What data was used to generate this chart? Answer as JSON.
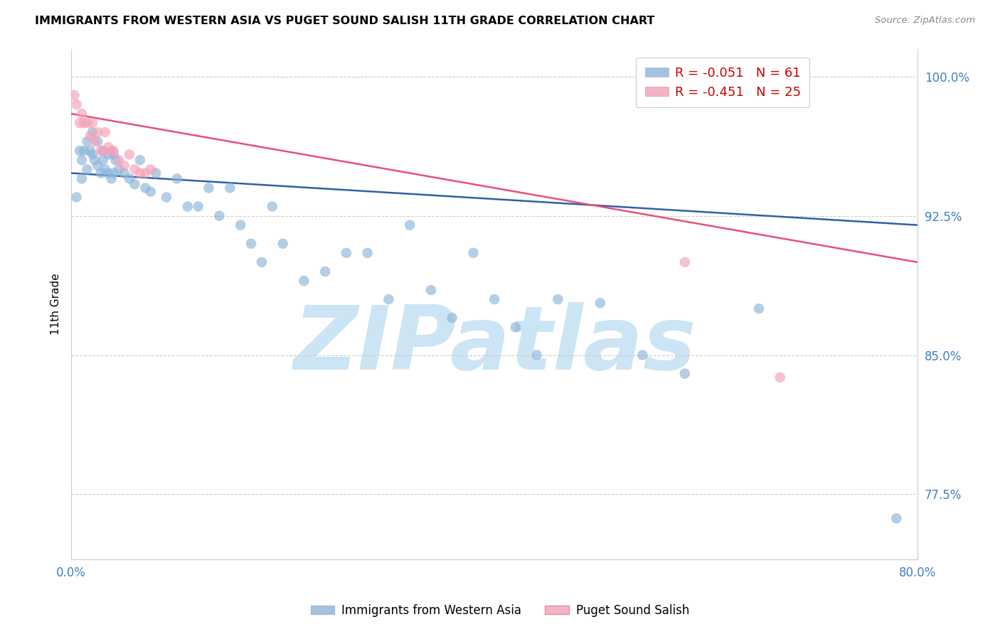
{
  "title": "IMMIGRANTS FROM WESTERN ASIA VS PUGET SOUND SALISH 11TH GRADE CORRELATION CHART",
  "source": "Source: ZipAtlas.com",
  "ylabel": "11th Grade",
  "xlim": [
    0.0,
    0.8
  ],
  "ylim": [
    0.74,
    1.015
  ],
  "yticks": [
    0.775,
    0.85,
    0.925,
    1.0
  ],
  "yticklabels": [
    "77.5%",
    "85.0%",
    "92.5%",
    "100.0%"
  ],
  "blue_color": "#8ab4d8",
  "pink_color": "#f4a0b8",
  "blue_line_color": "#3060a8",
  "pink_line_color": "#e8507a",
  "watermark": "ZIPatlas",
  "watermark_color": "#cce5f5",
  "blue_dots_x": [
    0.005,
    0.008,
    0.01,
    0.01,
    0.012,
    0.015,
    0.015,
    0.018,
    0.02,
    0.02,
    0.022,
    0.025,
    0.025,
    0.028,
    0.03,
    0.03,
    0.032,
    0.035,
    0.035,
    0.038,
    0.04,
    0.04,
    0.042,
    0.045,
    0.05,
    0.055,
    0.06,
    0.065,
    0.07,
    0.075,
    0.08,
    0.09,
    0.1,
    0.11,
    0.12,
    0.13,
    0.14,
    0.15,
    0.16,
    0.17,
    0.18,
    0.19,
    0.2,
    0.22,
    0.24,
    0.26,
    0.28,
    0.3,
    0.32,
    0.34,
    0.36,
    0.38,
    0.4,
    0.42,
    0.44,
    0.46,
    0.5,
    0.54,
    0.58,
    0.65,
    0.78
  ],
  "blue_dots_y": [
    0.935,
    0.96,
    0.955,
    0.945,
    0.96,
    0.965,
    0.95,
    0.96,
    0.97,
    0.958,
    0.955,
    0.965,
    0.952,
    0.948,
    0.96,
    0.955,
    0.95,
    0.958,
    0.948,
    0.945,
    0.958,
    0.948,
    0.955,
    0.95,
    0.948,
    0.945,
    0.942,
    0.955,
    0.94,
    0.938,
    0.948,
    0.935,
    0.945,
    0.93,
    0.93,
    0.94,
    0.925,
    0.94,
    0.92,
    0.91,
    0.9,
    0.93,
    0.91,
    0.89,
    0.895,
    0.905,
    0.905,
    0.88,
    0.92,
    0.885,
    0.87,
    0.905,
    0.88,
    0.865,
    0.85,
    0.88,
    0.878,
    0.85,
    0.84,
    0.875,
    0.762
  ],
  "pink_dots_x": [
    0.003,
    0.005,
    0.008,
    0.01,
    0.012,
    0.015,
    0.018,
    0.02,
    0.022,
    0.025,
    0.028,
    0.03,
    0.032,
    0.035,
    0.038,
    0.04,
    0.045,
    0.05,
    0.055,
    0.06,
    0.065,
    0.07,
    0.075,
    0.58,
    0.67
  ],
  "pink_dots_y": [
    0.99,
    0.985,
    0.975,
    0.98,
    0.975,
    0.975,
    0.968,
    0.975,
    0.965,
    0.97,
    0.96,
    0.96,
    0.97,
    0.962,
    0.96,
    0.96,
    0.955,
    0.952,
    0.958,
    0.95,
    0.948,
    0.948,
    0.95,
    0.9,
    0.838
  ],
  "blue_line_x0": 0.0,
  "blue_line_y0": 0.948,
  "blue_line_x1": 0.8,
  "blue_line_y1": 0.92,
  "pink_line_x0": 0.0,
  "pink_line_y0": 0.98,
  "pink_line_x1": 0.8,
  "pink_line_y1": 0.9,
  "legend_labels": [
    "R = -0.051   N = 61",
    "R = -0.451   N = 25"
  ],
  "bottom_legend_labels": [
    "Immigrants from Western Asia",
    "Puget Sound Salish"
  ]
}
